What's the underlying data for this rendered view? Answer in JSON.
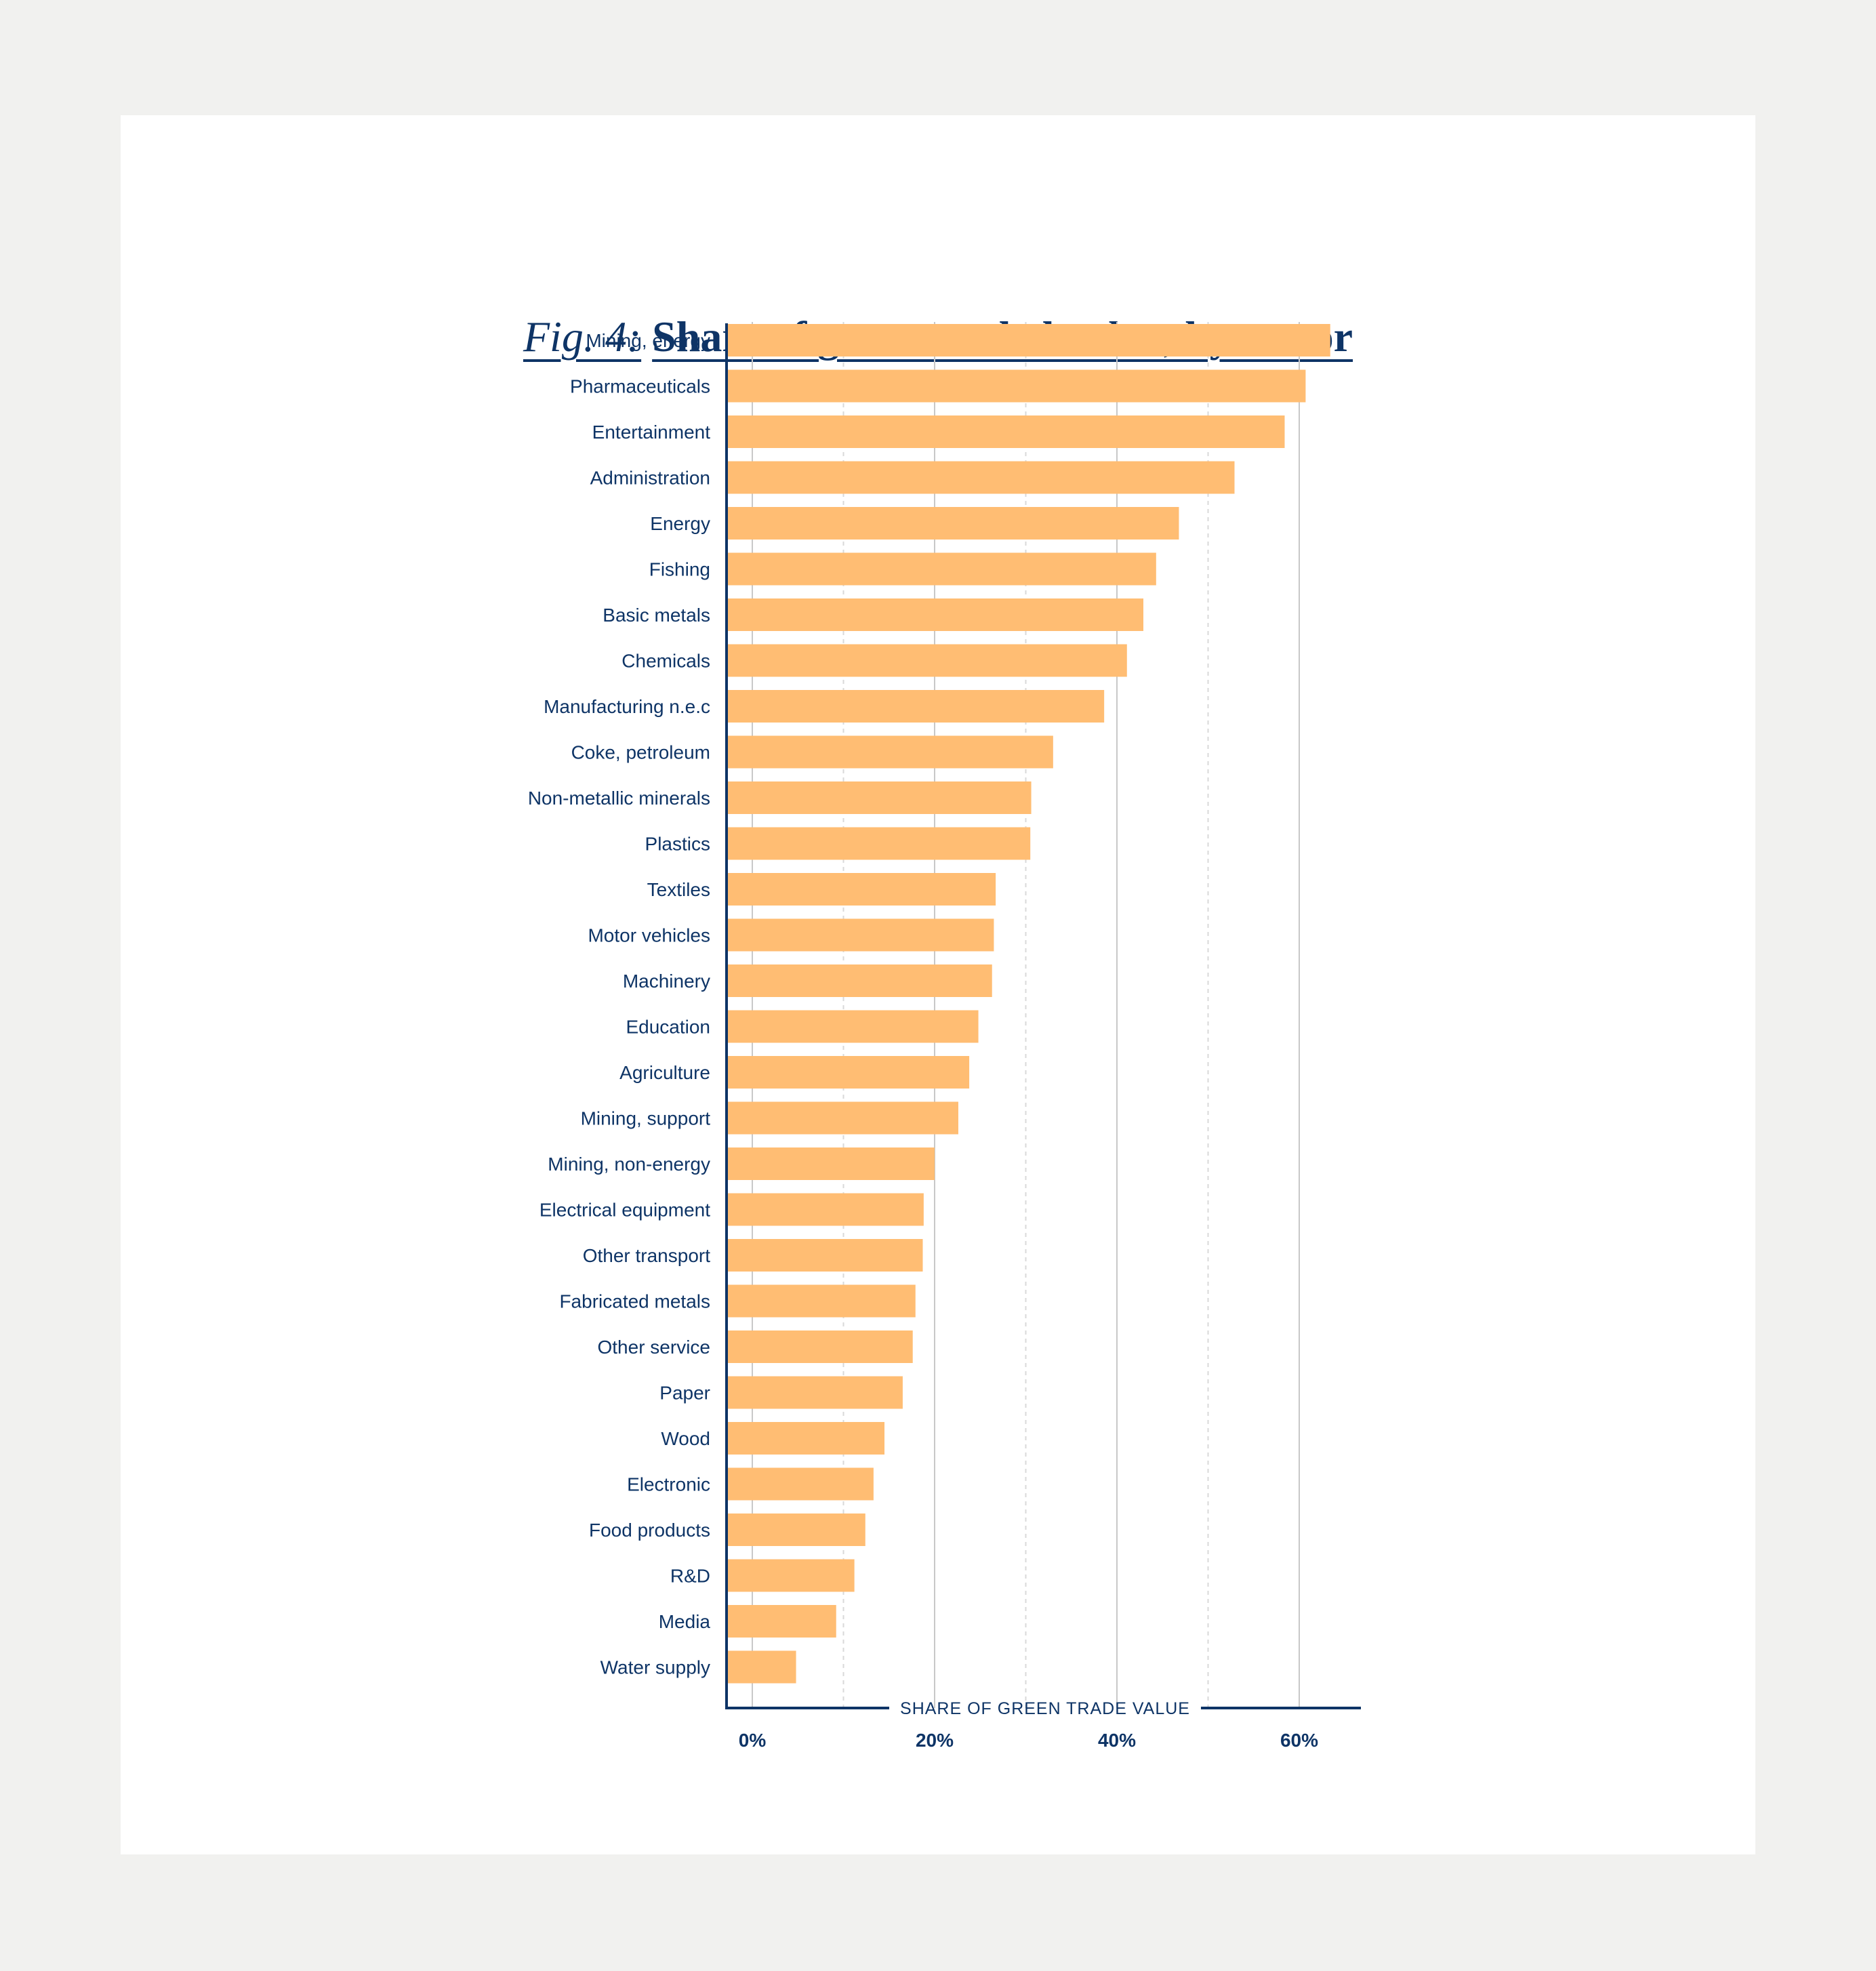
{
  "title": {
    "prefix": "Fig. 4:",
    "main": "Share of green traded value, by sector"
  },
  "colors": {
    "bar": "#ffbd73",
    "text": "#0e3466",
    "grid_major": "#c8c8c8",
    "grid_minor": "#d9d9d9",
    "background": "#f1f1ef",
    "card": "#ffffff"
  },
  "chart_data": {
    "type": "bar",
    "orientation": "horizontal",
    "title": "Share of green traded value, by sector",
    "xlabel": "SHARE OF GREEN TRADE VALUE",
    "ylabel": "",
    "xlim": [
      -3,
      66
    ],
    "xticks": [
      0,
      20,
      40,
      60
    ],
    "xtick_labels": [
      "0%",
      "20%",
      "40%",
      "60%"
    ],
    "minor_gridlines": [
      10,
      30,
      50
    ],
    "grid": true,
    "categories": [
      "Mining, energy",
      "Pharmaceuticals",
      "Entertainment",
      "Administration",
      "Energy",
      "Fishing",
      "Basic metals",
      "Chemicals",
      "Manufacturing n.e.c",
      "Coke, petroleum",
      "Non-metallic minerals",
      "Plastics",
      "Textiles",
      "Motor vehicles",
      "Machinery",
      "Education",
      "Agriculture",
      "Mining, support",
      "Mining, non-energy",
      "Electrical equipment",
      "Other transport",
      "Fabricated metals",
      "Other service",
      "Paper",
      "Wood",
      "Electronic",
      "Food products",
      "R&D",
      "Media",
      "Water supply"
    ],
    "values": [
      63.4,
      60.7,
      58.4,
      52.9,
      46.8,
      44.3,
      42.9,
      41.1,
      38.6,
      33.0,
      30.6,
      30.5,
      26.7,
      26.5,
      26.3,
      24.8,
      23.8,
      22.6,
      20.0,
      18.8,
      18.7,
      17.9,
      17.6,
      16.5,
      14.5,
      13.3,
      12.4,
      11.2,
      9.2,
      4.8
    ]
  }
}
